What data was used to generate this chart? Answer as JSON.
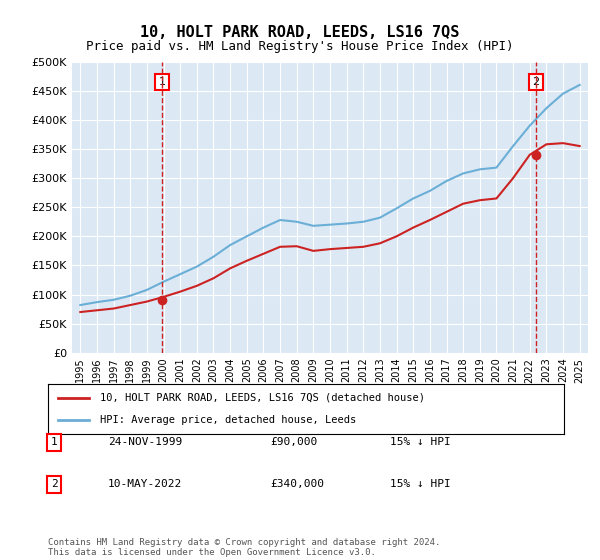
{
  "title": "10, HOLT PARK ROAD, LEEDS, LS16 7QS",
  "subtitle": "Price paid vs. HM Land Registry's House Price Index (HPI)",
  "property_label": "10, HOLT PARK ROAD, LEEDS, LS16 7QS (detached house)",
  "hpi_label": "HPI: Average price, detached house, Leeds",
  "footer": "Contains HM Land Registry data © Crown copyright and database right 2024.\nThis data is licensed under the Open Government Licence v3.0.",
  "sale1_label": "1",
  "sale1_date": "24-NOV-1999",
  "sale1_price": "£90,000",
  "sale1_hpi": "15% ↓ HPI",
  "sale2_label": "2",
  "sale2_date": "10-MAY-2022",
  "sale2_price": "£340,000",
  "sale2_hpi": "15% ↓ HPI",
  "sale1_year": 1999.9,
  "sale1_value": 90000,
  "sale2_year": 2022.36,
  "sale2_value": 340000,
  "ylim": [
    0,
    500000
  ],
  "yticks": [
    0,
    50000,
    100000,
    150000,
    200000,
    250000,
    300000,
    350000,
    400000,
    450000,
    500000
  ],
  "xlim_start": 1994.5,
  "xlim_end": 2025.5,
  "bg_color": "#dce9f5",
  "plot_bg": "#dce9f5",
  "hpi_color": "#6baed6",
  "property_color": "#cc2222",
  "grid_color": "#ffffff",
  "x_years": [
    1995,
    1996,
    1997,
    1998,
    1999,
    2000,
    2001,
    2002,
    2003,
    2004,
    2005,
    2006,
    2007,
    2008,
    2009,
    2010,
    2011,
    2012,
    2013,
    2014,
    2015,
    2016,
    2017,
    2018,
    2019,
    2020,
    2021,
    2022,
    2023,
    2024,
    2025
  ],
  "hpi_values": [
    82000,
    87000,
    91000,
    98000,
    108000,
    122000,
    135000,
    148000,
    165000,
    185000,
    200000,
    215000,
    228000,
    225000,
    218000,
    220000,
    222000,
    225000,
    232000,
    248000,
    265000,
    278000,
    295000,
    308000,
    315000,
    318000,
    355000,
    390000,
    420000,
    445000,
    460000
  ],
  "property_values": [
    70000,
    73000,
    76000,
    82000,
    88000,
    96000,
    105000,
    115000,
    128000,
    145000,
    158000,
    170000,
    182000,
    183000,
    175000,
    178000,
    180000,
    182000,
    188000,
    200000,
    215000,
    228000,
    242000,
    256000,
    262000,
    265000,
    300000,
    340000,
    358000,
    360000,
    355000
  ]
}
